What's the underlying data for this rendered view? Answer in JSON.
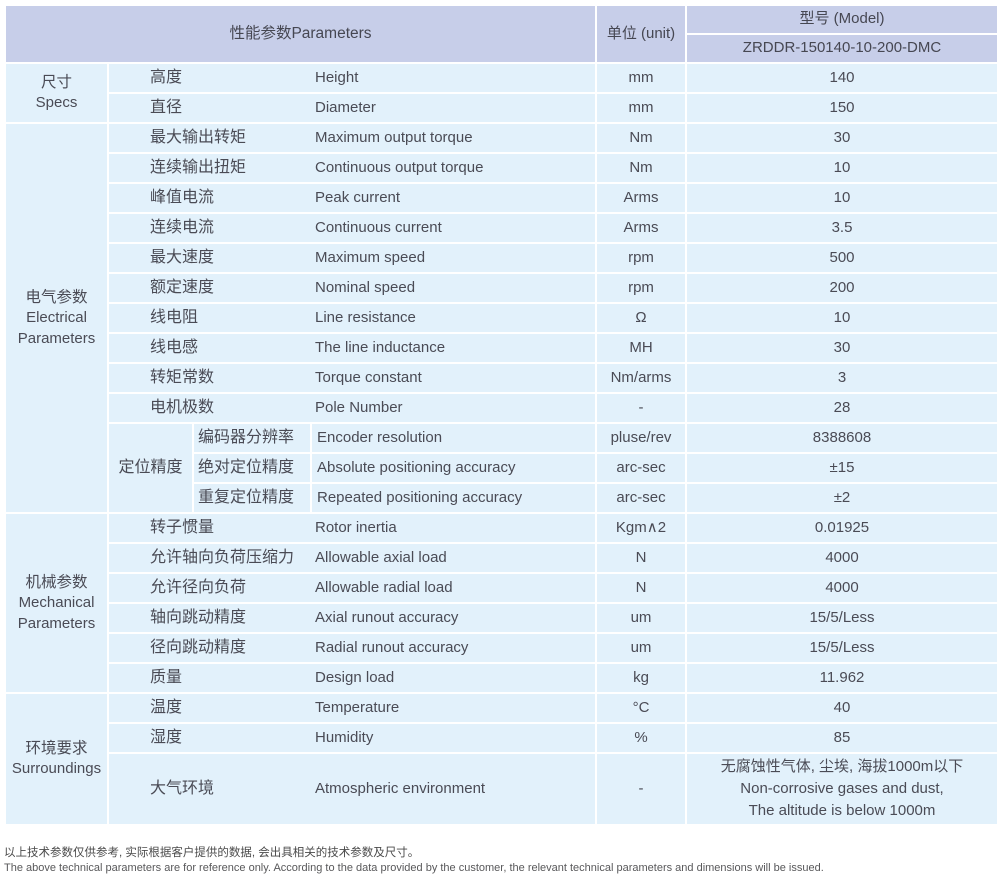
{
  "colors": {
    "header_bg": "#c7cee9",
    "cell_bg": "#e2f1fb",
    "separator": "#ffffff",
    "text": "#4a4b55"
  },
  "header": {
    "parameters_label": "性能参数Parameters",
    "unit_label": "单位 (unit)",
    "model_label": "型号 (Model)",
    "model_value": "ZRDDR-150140-10-200-DMC"
  },
  "groups": [
    {
      "cn": "尺寸",
      "en": "Specs"
    },
    {
      "cn": "电气参数",
      "en": "Electrical Parameters"
    },
    {
      "cn": "机械参数",
      "en": "Mechanical Parameters"
    },
    {
      "cn": "环境要求",
      "en": "Surroundings"
    }
  ],
  "subgroup": {
    "cn": "定位精度"
  },
  "rows": [
    {
      "cn": "高度",
      "en": "Height",
      "unit": "mm",
      "value": "140"
    },
    {
      "cn": "直径",
      "en": "Diameter",
      "unit": "mm",
      "value": "150"
    },
    {
      "cn": "最大输出转矩",
      "en": "Maximum output torque",
      "unit": "Nm",
      "value": "30"
    },
    {
      "cn": "连续输出扭矩",
      "en": "Continuous output torque",
      "unit": "Nm",
      "value": "10"
    },
    {
      "cn": "峰值电流",
      "en": "Peak current",
      "unit": "Arms",
      "value": "10"
    },
    {
      "cn": "连续电流",
      "en": "Continuous current",
      "unit": "Arms",
      "value": "3.5"
    },
    {
      "cn": "最大速度",
      "en": "Maximum speed",
      "unit": "rpm",
      "value": "500"
    },
    {
      "cn": "额定速度",
      "en": "Nominal speed",
      "unit": "rpm",
      "value": "200"
    },
    {
      "cn": "线电阻",
      "en": "Line resistance",
      "unit": "Ω",
      "value": "10"
    },
    {
      "cn": "线电感",
      "en": "The line inductance",
      "unit": "MH",
      "value": "30"
    },
    {
      "cn": "转矩常数",
      "en": "Torque constant",
      "unit": "Nm/arms",
      "value": "3"
    },
    {
      "cn": "电机极数",
      "en": "Pole Number",
      "unit": "-",
      "value": "28"
    },
    {
      "cn": "编码器分辨率",
      "en": "Encoder resolution",
      "unit": "pluse/rev",
      "value": "8388608"
    },
    {
      "cn": "绝对定位精度",
      "en": "Absolute positioning accuracy",
      "unit": "arc-sec",
      "value": "±15"
    },
    {
      "cn": "重复定位精度",
      "en": "Repeated positioning accuracy",
      "unit": "arc-sec",
      "value": "±2"
    },
    {
      "cn": "转子惯量",
      "en": "Rotor inertia",
      "unit": "Kgm∧2",
      "value": "0.01925"
    },
    {
      "cn": "允许轴向负荷压缩力",
      "en": "Allowable axial load",
      "unit": "N",
      "value": "4000"
    },
    {
      "cn": "允许径向负荷",
      "en": "Allowable radial load",
      "unit": "N",
      "value": "4000"
    },
    {
      "cn": "轴向跳动精度",
      "en": "Axial runout accuracy",
      "unit": "um",
      "value": "15/5/Less"
    },
    {
      "cn": "径向跳动精度",
      "en": "Radial runout accuracy",
      "unit": "um",
      "value": "15/5/Less"
    },
    {
      "cn": "质量",
      "en": "Design load",
      "unit": "kg",
      "value": "11.962"
    },
    {
      "cn": "温度",
      "en": "Temperature",
      "unit": "°C",
      "value": "40"
    },
    {
      "cn": "湿度",
      "en": "Humidity",
      "unit": "%",
      "value": "85"
    },
    {
      "cn": "大气环境",
      "en": "Atmospheric environment",
      "unit": "-",
      "value_lines": [
        "无腐蚀性气体, 尘埃, 海拔1000m以下",
        "Non-corrosive gases and dust,",
        "The altitude is below 1000m"
      ]
    }
  ],
  "footnotes": {
    "cn": "以上技术参数仅供参考, 实际根据客户提供的数据, 会出具相关的技术参数及尺寸。",
    "en": "The above technical parameters are for reference only. According to the data provided by the customer, the relevant technical parameters and dimensions will be issued."
  }
}
